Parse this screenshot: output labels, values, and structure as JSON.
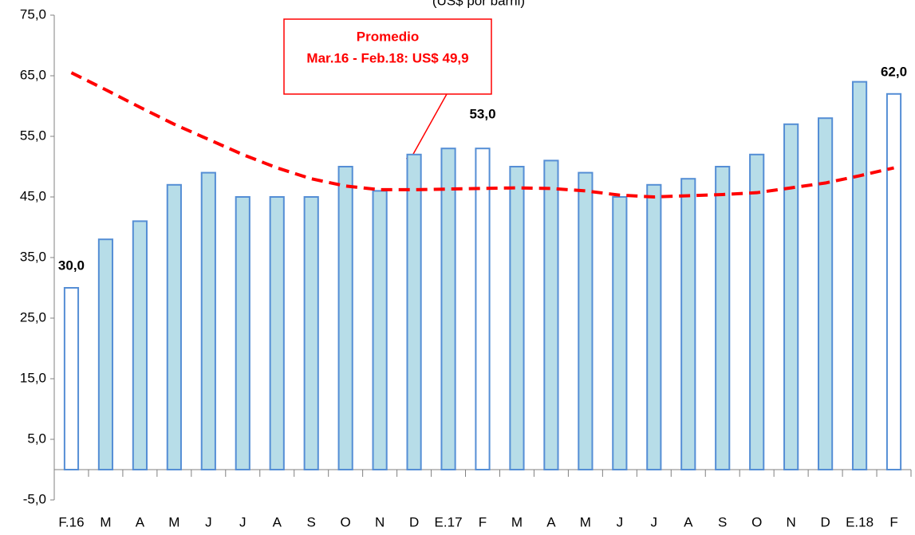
{
  "chart_data": {
    "type": "bar",
    "subtitle": "(US$ por barril)",
    "categories": [
      "F.16",
      "M",
      "A",
      "M",
      "J",
      "J",
      "A",
      "S",
      "O",
      "N",
      "D",
      "E.17",
      "F",
      "M",
      "A",
      "M",
      "J",
      "J",
      "A",
      "S",
      "O",
      "N",
      "D",
      "E.18",
      "F"
    ],
    "series": [
      {
        "type": "bar",
        "stroke": "#558ed5",
        "values": [
          30,
          38,
          41,
          47,
          49,
          45,
          45,
          45,
          50,
          46,
          52,
          53,
          53,
          50,
          51,
          49,
          45,
          47,
          48,
          50,
          52,
          57,
          58,
          64,
          62
        ],
        "colors": [
          "#ffffff",
          "#b7dde8",
          "#b7dde8",
          "#b7dde8",
          "#b7dde8",
          "#b7dde8",
          "#b7dde8",
          "#b7dde8",
          "#b7dde8",
          "#b7dde8",
          "#b7dde8",
          "#b7dde8",
          "#ffffff",
          "#b7dde8",
          "#b7dde8",
          "#b7dde8",
          "#b7dde8",
          "#b7dde8",
          "#b7dde8",
          "#b7dde8",
          "#b7dde8",
          "#b7dde8",
          "#b7dde8",
          "#b7dde8",
          "#ffffff"
        ],
        "value_labels": [
          "30,0",
          null,
          null,
          null,
          null,
          null,
          null,
          null,
          null,
          null,
          null,
          null,
          "53,0",
          null,
          null,
          null,
          null,
          null,
          null,
          null,
          null,
          null,
          null,
          null,
          "62,0"
        ]
      },
      {
        "type": "line",
        "color": "#ff0000",
        "dashed": true,
        "values": [
          65.5,
          62.7,
          59.8,
          57.0,
          54.5,
          52.0,
          49.8,
          48.0,
          46.8,
          46.2,
          46.2,
          46.3,
          46.4,
          46.5,
          46.4,
          46.0,
          45.3,
          45.0,
          45.2,
          45.4,
          45.7,
          46.5,
          47.3,
          48.5,
          49.8
        ]
      }
    ],
    "annotation": {
      "lines": [
        "Promedio",
        "Mar.16 - Feb.18: US$ 49,9"
      ],
      "color": "#ff0000"
    },
    "ylim": [
      -5,
      75
    ],
    "yticks": [
      {
        "value": -5,
        "label": "-5,0"
      },
      {
        "value": 5,
        "label": "5,0"
      },
      {
        "value": 15,
        "label": "15,0"
      },
      {
        "value": 25,
        "label": "25,0"
      },
      {
        "value": 35,
        "label": "35,0"
      },
      {
        "value": 45,
        "label": "45,0"
      },
      {
        "value": 55,
        "label": "55,0"
      },
      {
        "value": 65,
        "label": "65,0"
      },
      {
        "value": 75,
        "label": "75,0"
      }
    ],
    "grid": false
  }
}
